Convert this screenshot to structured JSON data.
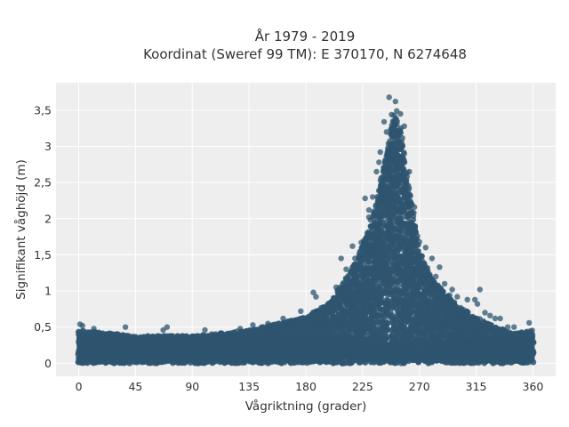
{
  "chart_data": {
    "type": "scatter",
    "title_line1": "År 1979 - 2019",
    "title_line2": "Koordinat (Sweref 99 TM): E 370170, N 6274648",
    "xlabel": "Vågriktning (grader)",
    "ylabel": "Signifikant våghöjd (m)",
    "xlim": [
      -18,
      378
    ],
    "ylim": [
      -0.18,
      3.88
    ],
    "x_ticks": [
      0,
      45,
      90,
      135,
      180,
      225,
      270,
      315,
      360
    ],
    "x_tick_labels": [
      "0",
      "45",
      "90",
      "135",
      "180",
      "225",
      "270",
      "315",
      "360"
    ],
    "y_ticks": [
      0,
      0.5,
      1,
      1.5,
      2,
      2.5,
      3,
      3.5
    ],
    "y_tick_labels": [
      "0",
      "0,5",
      "1",
      "1,5",
      "2",
      "2,5",
      "3",
      "3,5"
    ],
    "grid": true,
    "marker_color": "#2e5570",
    "plot_background": "#eeeeee",
    "envelope": {
      "x": [
        0,
        45,
        90,
        135,
        180,
        200,
        220,
        235,
        245,
        250,
        255,
        260,
        270,
        280,
        300,
        315,
        330,
        345,
        360
      ],
      "y_max": [
        0.5,
        0.42,
        0.42,
        0.5,
        0.68,
        0.9,
        1.45,
        2.2,
        3.05,
        3.5,
        3.3,
        2.7,
        1.6,
        1.2,
        0.85,
        0.68,
        0.55,
        0.45,
        0.5
      ]
    },
    "outliers": [
      {
        "x": 246,
        "y": 3.68
      },
      {
        "x": 251,
        "y": 3.62
      },
      {
        "x": 252,
        "y": 3.49
      },
      {
        "x": 255,
        "y": 3.45
      },
      {
        "x": 248,
        "y": 3.44
      },
      {
        "x": 242,
        "y": 3.34
      },
      {
        "x": 258,
        "y": 3.28
      },
      {
        "x": 244,
        "y": 3.2
      },
      {
        "x": 247,
        "y": 3.0
      },
      {
        "x": 239,
        "y": 2.92
      },
      {
        "x": 238,
        "y": 2.78
      },
      {
        "x": 236,
        "y": 2.65
      },
      {
        "x": 233,
        "y": 2.3
      },
      {
        "x": 227,
        "y": 2.28
      },
      {
        "x": 230,
        "y": 2.12
      },
      {
        "x": 230,
        "y": 2.02
      },
      {
        "x": 224,
        "y": 1.67
      },
      {
        "x": 226,
        "y": 1.58
      },
      {
        "x": 219,
        "y": 1.45
      },
      {
        "x": 217,
        "y": 1.62
      },
      {
        "x": 212,
        "y": 1.3
      },
      {
        "x": 208,
        "y": 1.45
      },
      {
        "x": 204,
        "y": 1.05
      },
      {
        "x": 188,
        "y": 0.92
      },
      {
        "x": 186,
        "y": 0.98
      },
      {
        "x": 176,
        "y": 0.72
      },
      {
        "x": 255,
        "y": 1.3
      },
      {
        "x": 262,
        "y": 2.65
      },
      {
        "x": 266,
        "y": 2.16
      },
      {
        "x": 270,
        "y": 1.68
      },
      {
        "x": 275,
        "y": 1.6
      },
      {
        "x": 280,
        "y": 1.45
      },
      {
        "x": 286,
        "y": 1.33
      },
      {
        "x": 283,
        "y": 1.2
      },
      {
        "x": 290,
        "y": 1.1
      },
      {
        "x": 296,
        "y": 1.02
      },
      {
        "x": 294,
        "y": 0.94
      },
      {
        "x": 300,
        "y": 0.92
      },
      {
        "x": 308,
        "y": 0.88
      },
      {
        "x": 314,
        "y": 0.88
      },
      {
        "x": 316,
        "y": 0.82
      },
      {
        "x": 318,
        "y": 1.02
      },
      {
        "x": 322,
        "y": 0.7
      },
      {
        "x": 326,
        "y": 0.66
      },
      {
        "x": 330,
        "y": 0.62
      },
      {
        "x": 334,
        "y": 0.62
      },
      {
        "x": 340,
        "y": 0.5
      },
      {
        "x": 345,
        "y": 0.5
      },
      {
        "x": 357,
        "y": 0.56
      },
      {
        "x": 1,
        "y": 0.54
      },
      {
        "x": 3,
        "y": 0.52
      },
      {
        "x": 12,
        "y": 0.48
      },
      {
        "x": 37,
        "y": 0.5
      },
      {
        "x": 70,
        "y": 0.5
      },
      {
        "x": 67,
        "y": 0.46
      },
      {
        "x": 100,
        "y": 0.46
      },
      {
        "x": 128,
        "y": 0.48
      },
      {
        "x": 138,
        "y": 0.53
      },
      {
        "x": 150,
        "y": 0.55
      },
      {
        "x": 162,
        "y": 0.62
      }
    ]
  }
}
